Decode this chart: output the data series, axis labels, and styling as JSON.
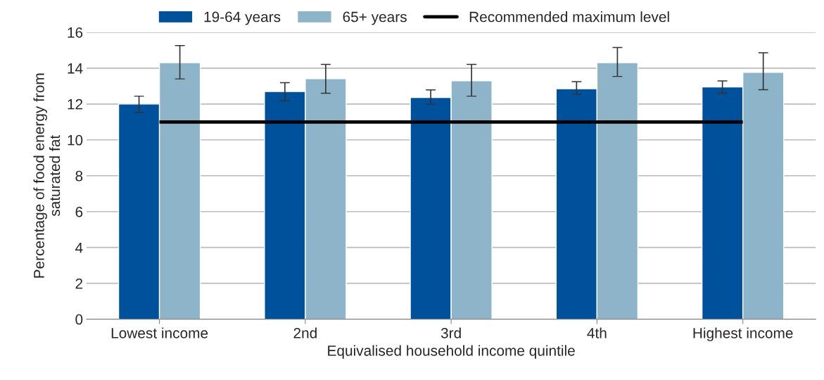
{
  "chart_data": {
    "type": "bar",
    "xlabel": "Equivalised household income quintile",
    "ylabel": "Percentage of food energy from\nsaturated fat",
    "categories": [
      "Lowest income",
      "2nd",
      "3rd",
      "4th",
      "Highest income"
    ],
    "series": [
      {
        "name": "19-64 years",
        "color": "#00519b",
        "values": [
          12.0,
          12.7,
          12.36,
          12.85,
          12.95
        ],
        "errors": [
          [
            11.53,
            12.44
          ],
          [
            12.18,
            13.19
          ],
          [
            11.99,
            12.79
          ],
          [
            12.53,
            13.25
          ],
          [
            12.6,
            13.29
          ]
        ]
      },
      {
        "name": "65+ years",
        "color": "#8db4c8",
        "values": [
          14.31,
          13.41,
          13.3,
          14.31,
          13.77
        ],
        "errors": [
          [
            13.4,
            15.26
          ],
          [
            12.6,
            14.21
          ],
          [
            12.44,
            14.21
          ],
          [
            13.54,
            15.15
          ],
          [
            12.8,
            14.86
          ]
        ]
      }
    ],
    "ref_lines": [
      {
        "axis": "y",
        "value": 11,
        "label": "Recommended maximum level",
        "color": "#000000"
      }
    ],
    "ylim": [
      0,
      16
    ],
    "yticks": [
      0,
      2,
      4,
      6,
      8,
      10,
      12,
      14,
      16
    ],
    "grid": "y",
    "legend": "top"
  }
}
